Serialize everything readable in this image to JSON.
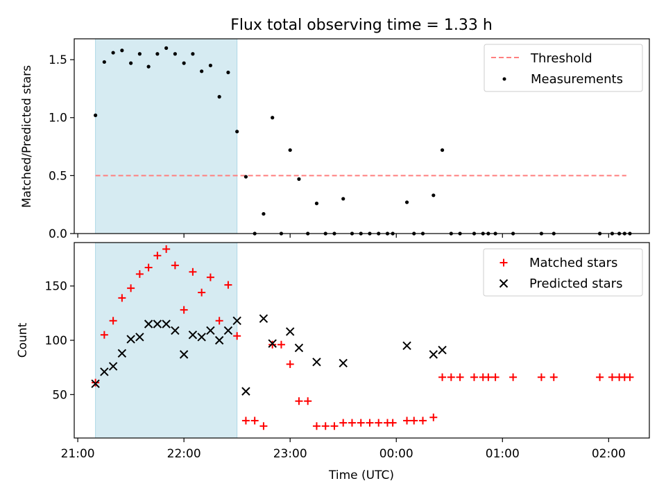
{
  "chart_data": [
    {
      "type": "scatter",
      "title": "Flux total observing time = 1.33 h",
      "xlabel": "",
      "ylabel": "Matched/Predicted stars",
      "xlim": [
        "20:58",
        "02:23"
      ],
      "ylim": [
        0,
        1.68
      ],
      "yticks": [
        "0.0",
        "0.5",
        "1.0",
        "1.5"
      ],
      "legend_position": "top-right",
      "shaded_region": {
        "start": "21:10",
        "end": "22:30",
        "color": "#add8e6"
      },
      "threshold": {
        "name": "Threshold",
        "value": 0.5,
        "start": "21:10",
        "end": "02:10",
        "color": "#ff7f7f"
      },
      "series": [
        {
          "name": "Measurements",
          "color": "#000000",
          "points": [
            [
              "21:10",
              1.02
            ],
            [
              "21:15",
              1.48
            ],
            [
              "21:20",
              1.56
            ],
            [
              "21:25",
              1.58
            ],
            [
              "21:30",
              1.47
            ],
            [
              "21:35",
              1.55
            ],
            [
              "21:40",
              1.44
            ],
            [
              "21:45",
              1.55
            ],
            [
              "21:50",
              1.6
            ],
            [
              "21:55",
              1.55
            ],
            [
              "22:00",
              1.47
            ],
            [
              "22:05",
              1.55
            ],
            [
              "22:10",
              1.4
            ],
            [
              "22:15",
              1.45
            ],
            [
              "22:20",
              1.18
            ],
            [
              "22:25",
              1.39
            ],
            [
              "22:30",
              0.88
            ],
            [
              "22:35",
              0.49
            ],
            [
              "22:40",
              0.0
            ],
            [
              "22:45",
              0.17
            ],
            [
              "22:50",
              1.0
            ],
            [
              "22:55",
              0.0
            ],
            [
              "23:00",
              0.72
            ],
            [
              "23:05",
              0.47
            ],
            [
              "23:10",
              0.0
            ],
            [
              "23:15",
              0.26
            ],
            [
              "23:20",
              0.0
            ],
            [
              "23:25",
              0.0
            ],
            [
              "23:30",
              0.3
            ],
            [
              "23:35",
              0.0
            ],
            [
              "23:40",
              0.0
            ],
            [
              "23:45",
              0.0
            ],
            [
              "23:50",
              0.0
            ],
            [
              "23:55",
              0.0
            ],
            [
              "23:58",
              0.0
            ],
            [
              "00:06",
              0.27
            ],
            [
              "00:10",
              0.0
            ],
            [
              "00:15",
              0.0
            ],
            [
              "00:21",
              0.33
            ],
            [
              "00:26",
              0.72
            ],
            [
              "00:31",
              0.0
            ],
            [
              "00:36",
              0.0
            ],
            [
              "00:44",
              0.0
            ],
            [
              "00:49",
              0.0
            ],
            [
              "00:52",
              0.0
            ],
            [
              "00:56",
              0.0
            ],
            [
              "01:06",
              0.0
            ],
            [
              "01:22",
              0.0
            ],
            [
              "01:29",
              0.0
            ],
            [
              "01:55",
              0.0
            ],
            [
              "02:02",
              0.0
            ],
            [
              "02:06",
              0.0
            ],
            [
              "02:09",
              0.0
            ],
            [
              "02:12",
              0.0
            ]
          ]
        }
      ]
    },
    {
      "type": "scatter",
      "title": "",
      "xlabel": "Time (UTC)",
      "ylabel": "Count",
      "xlim": [
        "20:58",
        "02:23"
      ],
      "ylim": [
        10,
        190
      ],
      "yticks": [
        "50",
        "100",
        "150"
      ],
      "xticks": [
        "21:00",
        "22:00",
        "23:00",
        "00:00",
        "01:00",
        "02:00"
      ],
      "legend_position": "top-right",
      "shaded_region": {
        "start": "21:10",
        "end": "22:30",
        "color": "#add8e6"
      },
      "series": [
        {
          "name": "Matched stars",
          "marker": "+",
          "color": "#ff0000",
          "points": [
            [
              "21:10",
              61
            ],
            [
              "21:15",
              105
            ],
            [
              "21:20",
              118
            ],
            [
              "21:25",
              139
            ],
            [
              "21:30",
              148
            ],
            [
              "21:35",
              161
            ],
            [
              "21:40",
              167
            ],
            [
              "21:45",
              178
            ],
            [
              "21:50",
              184
            ],
            [
              "21:55",
              169
            ],
            [
              "22:00",
              128
            ],
            [
              "22:05",
              163
            ],
            [
              "22:10",
              144
            ],
            [
              "22:15",
              158
            ],
            [
              "22:20",
              118
            ],
            [
              "22:25",
              151
            ],
            [
              "22:30",
              104
            ],
            [
              "22:35",
              26
            ],
            [
              "22:40",
              26
            ],
            [
              "22:45",
              21
            ],
            [
              "22:50",
              96
            ],
            [
              "22:55",
              96
            ],
            [
              "23:00",
              78
            ],
            [
              "23:05",
              44
            ],
            [
              "23:10",
              44
            ],
            [
              "23:15",
              21
            ],
            [
              "23:20",
              21
            ],
            [
              "23:25",
              21
            ],
            [
              "23:30",
              24
            ],
            [
              "23:35",
              24
            ],
            [
              "23:40",
              24
            ],
            [
              "23:45",
              24
            ],
            [
              "23:50",
              24
            ],
            [
              "23:55",
              24
            ],
            [
              "23:58",
              24
            ],
            [
              "00:06",
              26
            ],
            [
              "00:10",
              26
            ],
            [
              "00:15",
              26
            ],
            [
              "00:21",
              29
            ],
            [
              "00:26",
              66
            ],
            [
              "00:31",
              66
            ],
            [
              "00:36",
              66
            ],
            [
              "00:44",
              66
            ],
            [
              "00:49",
              66
            ],
            [
              "00:52",
              66
            ],
            [
              "00:56",
              66
            ],
            [
              "01:06",
              66
            ],
            [
              "01:22",
              66
            ],
            [
              "01:29",
              66
            ],
            [
              "01:55",
              66
            ],
            [
              "02:02",
              66
            ],
            [
              "02:06",
              66
            ],
            [
              "02:09",
              66
            ],
            [
              "02:12",
              66
            ]
          ]
        },
        {
          "name": "Predicted stars",
          "marker": "x",
          "color": "#000000",
          "points": [
            [
              "21:10",
              60
            ],
            [
              "21:15",
              71
            ],
            [
              "21:20",
              76
            ],
            [
              "21:25",
              88
            ],
            [
              "21:30",
              101
            ],
            [
              "21:35",
              103
            ],
            [
              "21:40",
              115
            ],
            [
              "21:45",
              115
            ],
            [
              "21:50",
              115
            ],
            [
              "21:55",
              109
            ],
            [
              "22:00",
              87
            ],
            [
              "22:05",
              105
            ],
            [
              "22:10",
              103
            ],
            [
              "22:15",
              109
            ],
            [
              "22:20",
              100
            ],
            [
              "22:25",
              109
            ],
            [
              "22:30",
              118
            ],
            [
              "22:35",
              53
            ],
            [
              "22:45",
              120
            ],
            [
              "22:50",
              97
            ],
            [
              "23:00",
              108
            ],
            [
              "23:05",
              93
            ],
            [
              "23:15",
              80
            ],
            [
              "23:30",
              79
            ],
            [
              "00:06",
              95
            ],
            [
              "00:21",
              87
            ],
            [
              "00:26",
              91
            ]
          ]
        }
      ]
    }
  ]
}
